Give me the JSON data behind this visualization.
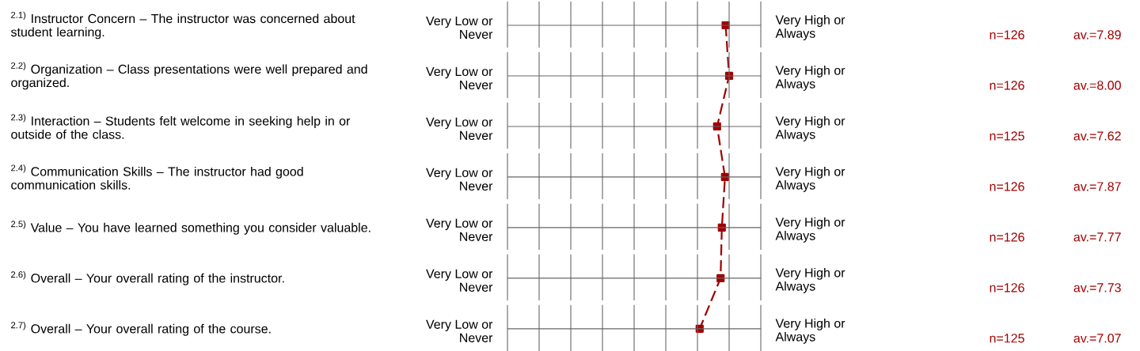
{
  "chart_data": {
    "type": "line",
    "orientation": "horizontal",
    "categories": [
      "$^{2.1)}$ Instructor Concern – The instructor was concerned about student learning.",
      "$^{2.2)}$ Organization – Class presentations were well prepared and organized.",
      "$^{2.3)}$ Interaction – Students felt welcome in seeking help in or outside of the class.",
      "$^{2.4)}$ Communication Skills – The instructor had good communication skills.",
      "$^{2.5)}$ Value – You have learned something you consider valuable.",
      "$^{2.6)}$ Overall – Your overall rating of the instructor.",
      "$^{2.7)}$ Overall – Your overall rating of the course."
    ],
    "values": [
      7.89,
      8.0,
      7.62,
      7.87,
      7.77,
      7.73,
      7.07
    ],
    "value_labels": [
      "av.=7.89",
      "av.=8.00",
      "av.=7.62",
      "av.=7.87",
      "av.=7.77",
      "av.=7.73",
      "av.=7.07"
    ],
    "color": "#a00000",
    "marker": "square",
    "line_style": "dashed",
    "grid": true,
    "xlim": [
      1,
      9
    ],
    "annotations": [
      "Very Low or Never",
      "Very High or Always",
      "n=126",
      "Very Low or Never",
      "Very High or Always",
      "n=126",
      "Very Low or Never",
      "Very High or Always",
      "n=125",
      "Very Low or Never",
      "Very High or Always",
      "n=126",
      "Very Low or Never",
      "Very High or Always",
      "n=126",
      "Very Low or Never",
      "Very High or Always",
      "n=126",
      "Very Low or Never",
      "Very High or Always",
      "n=125"
    ]
  }
}
